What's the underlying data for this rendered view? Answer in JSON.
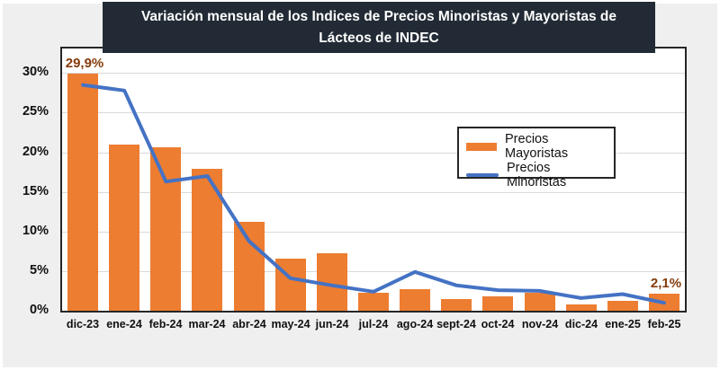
{
  "page": {
    "background_color": "#efefef",
    "frame_color": "#ffffff"
  },
  "title": {
    "text": "Variación mensual de los Indices de Precios Minoristas y Mayoristas de Lácteos de INDEC",
    "background_color": "#222b35",
    "text_color": "#ffffff"
  },
  "chart_data": {
    "type": "bar",
    "subtype": "bar-and-line-combo",
    "title": "Variación mensual de los Indices de Precios Minoristas y Mayoristas de Lácteos de INDEC",
    "categories": [
      "dic-23",
      "ene-24",
      "feb-24",
      "mar-24",
      "abr-24",
      "may-24",
      "jun-24",
      "jul-24",
      "ago-24",
      "sept-24",
      "oct-24",
      "nov-24",
      "dic-24",
      "ene-25",
      "feb-25"
    ],
    "series": [
      {
        "name": "Precios Mayoristas",
        "type": "bar",
        "color": "#ed7d31",
        "values": [
          29.9,
          21.0,
          20.6,
          17.9,
          11.2,
          6.6,
          7.2,
          2.3,
          2.7,
          1.5,
          1.8,
          2.3,
          0.8,
          1.2,
          2.1
        ]
      },
      {
        "name": "Precios Minoristas",
        "type": "line",
        "color": "#4472c4",
        "values": [
          28.5,
          27.8,
          16.3,
          17.0,
          8.8,
          4.1,
          3.2,
          2.4,
          4.9,
          3.2,
          2.6,
          2.5,
          1.6,
          2.1,
          1.0
        ]
      }
    ],
    "xlabel": "",
    "ylabel": "",
    "y_ticks": [
      {
        "value": 0,
        "label": "0%"
      },
      {
        "value": 5,
        "label": "5%"
      },
      {
        "value": 10,
        "label": "10%"
      },
      {
        "value": 15,
        "label": "15%"
      },
      {
        "value": 20,
        "label": "20%"
      },
      {
        "value": 25,
        "label": "25%"
      },
      {
        "value": 30,
        "label": "30%"
      }
    ],
    "ylim": [
      0,
      33.1
    ],
    "grid": true,
    "gridline_color": "#d9d9d9",
    "legend_position": "inside-upper-right",
    "annotations": [
      {
        "category": "dic-23",
        "series": "Precios Mayoristas",
        "text": "29,9%",
        "color": "#843c0b"
      },
      {
        "category": "feb-25",
        "series": "Precios Mayoristas",
        "text": "2,1%",
        "color": "#843c0b"
      }
    ]
  }
}
